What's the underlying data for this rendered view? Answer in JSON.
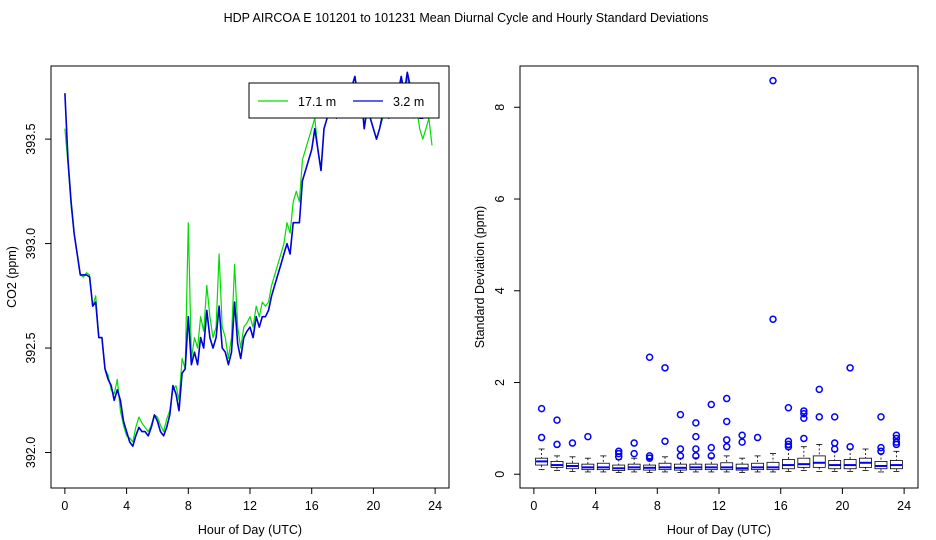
{
  "title": "HDP   AIRCOA E   101201 to 101231   Mean Diurnal Cycle and Hourly Standard Deviations",
  "colors": {
    "series1": "#00dd00",
    "series2": "#0000dd",
    "box": "#0000ff"
  },
  "chart_data": [
    {
      "type": "line",
      "xlabel": "Hour of Day (UTC)",
      "ylabel": "CO2 (ppm)",
      "xlim": [
        -0.9,
        24.9
      ],
      "ylim": [
        391.83,
        393.85
      ],
      "xticks": [
        0,
        4,
        8,
        12,
        16,
        20,
        24
      ],
      "yticks": [
        392.0,
        392.5,
        393.0,
        393.5
      ],
      "xtick_labels": [
        "0",
        "4",
        "8",
        "12",
        "16",
        "20",
        "24"
      ],
      "ytick_labels": [
        "392.0",
        "392.5",
        "393.0",
        "393.5"
      ],
      "legend_position": "top-right",
      "x": [
        0,
        0.2,
        0.4,
        0.6,
        0.8,
        1.0,
        1.2,
        1.4,
        1.6,
        1.8,
        2.0,
        2.2,
        2.4,
        2.6,
        2.8,
        3.0,
        3.2,
        3.4,
        3.6,
        3.8,
        4.0,
        4.2,
        4.4,
        4.6,
        4.8,
        5.0,
        5.2,
        5.4,
        5.6,
        5.8,
        6.0,
        6.2,
        6.4,
        6.6,
        6.8,
        7.0,
        7.2,
        7.4,
        7.6,
        7.8,
        8.0,
        8.2,
        8.4,
        8.6,
        8.8,
        9.0,
        9.2,
        9.4,
        9.6,
        9.8,
        10.0,
        10.2,
        10.4,
        10.6,
        10.8,
        11.0,
        11.2,
        11.4,
        11.6,
        11.8,
        12.0,
        12.2,
        12.4,
        12.6,
        12.8,
        13.0,
        13.2,
        13.4,
        13.6,
        13.8,
        14.0,
        14.2,
        14.4,
        14.6,
        14.8,
        15.0,
        15.2,
        15.4,
        15.6,
        15.8,
        16.0,
        16.2,
        16.4,
        16.6,
        16.8,
        17.0,
        17.2,
        17.4,
        17.6,
        17.8,
        18.0,
        18.2,
        18.4,
        18.6,
        18.8,
        19.0,
        19.2,
        19.4,
        19.6,
        19.8,
        20.0,
        20.2,
        20.4,
        20.6,
        20.8,
        21.0,
        21.2,
        21.4,
        21.6,
        21.8,
        22.0,
        22.2,
        22.4,
        22.6,
        22.8,
        23.0,
        23.2,
        23.4,
        23.6,
        23.8
      ],
      "series": [
        {
          "name": "17.1 m",
          "values": [
            393.55,
            393.38,
            393.18,
            393.05,
            392.95,
            392.85,
            392.84,
            392.86,
            392.85,
            392.7,
            392.75,
            392.55,
            392.55,
            392.4,
            392.37,
            392.3,
            392.28,
            392.35,
            392.2,
            392.13,
            392.08,
            392.07,
            392.05,
            392.12,
            392.17,
            392.14,
            392.12,
            392.1,
            392.13,
            392.18,
            392.17,
            392.13,
            392.1,
            392.16,
            392.2,
            392.3,
            392.32,
            392.25,
            392.45,
            392.4,
            393.1,
            392.45,
            392.55,
            392.5,
            392.65,
            392.58,
            392.8,
            392.65,
            392.55,
            392.6,
            392.95,
            392.6,
            392.55,
            392.45,
            392.55,
            392.9,
            392.6,
            392.5,
            392.6,
            392.62,
            392.65,
            392.6,
            392.7,
            392.65,
            392.72,
            392.7,
            392.72,
            392.8,
            392.85,
            392.9,
            392.95,
            393.0,
            393.1,
            393.05,
            393.2,
            393.25,
            393.2,
            393.4,
            393.45,
            393.5,
            393.55,
            393.6,
            393.45,
            393.35,
            393.55,
            393.6,
            393.75,
            393.62,
            393.6,
            393.7,
            393.72,
            393.7,
            393.68,
            393.75,
            393.8,
            393.7,
            393.72,
            393.55,
            393.65,
            393.6,
            393.55,
            393.5,
            393.55,
            393.6,
            393.65,
            393.6,
            393.7,
            393.75,
            393.72,
            393.78,
            393.7,
            393.8,
            393.72,
            393.6,
            393.65,
            393.55,
            393.5,
            393.55,
            393.6,
            393.47
          ]
        },
        {
          "name": "3.2 m",
          "values": [
            393.72,
            393.4,
            393.2,
            393.05,
            392.95,
            392.85,
            392.85,
            392.85,
            392.84,
            392.7,
            392.72,
            392.55,
            392.55,
            392.4,
            392.35,
            392.32,
            392.25,
            392.3,
            392.25,
            392.15,
            392.1,
            392.05,
            392.03,
            392.08,
            392.12,
            392.1,
            392.1,
            392.08,
            392.12,
            392.18,
            392.15,
            392.1,
            392.08,
            392.12,
            392.18,
            392.32,
            392.28,
            392.2,
            392.38,
            392.4,
            392.65,
            392.42,
            392.48,
            392.42,
            392.55,
            392.5,
            392.68,
            392.55,
            392.5,
            392.55,
            392.7,
            392.5,
            392.48,
            392.42,
            392.48,
            392.72,
            392.52,
            392.45,
            392.55,
            392.58,
            392.6,
            392.55,
            392.65,
            392.6,
            392.65,
            392.65,
            392.68,
            392.75,
            392.8,
            392.85,
            392.9,
            392.95,
            393.0,
            392.95,
            393.1,
            393.1,
            393.1,
            393.3,
            393.35,
            393.4,
            393.45,
            393.55,
            393.45,
            393.35,
            393.55,
            393.6,
            393.7,
            393.62,
            393.6,
            393.72,
            393.7,
            393.7,
            393.68,
            393.75,
            393.8,
            393.7,
            393.72,
            393.55,
            393.65,
            393.6,
            393.55,
            393.5,
            393.55,
            393.62,
            393.65,
            393.6,
            393.72,
            393.75,
            393.72,
            393.8,
            393.72,
            393.82,
            393.75,
            393.65,
            393.65,
            393.6,
            393.6,
            393.62,
            393.65,
            393.62
          ]
        }
      ]
    },
    {
      "type": "box",
      "xlabel": "Hour of Day (UTC)",
      "ylabel": "Standard Deviation (ppm)",
      "xlim": [
        -0.9,
        24.9
      ],
      "ylim": [
        -0.3,
        8.9
      ],
      "xticks": [
        0,
        4,
        8,
        12,
        16,
        20,
        24
      ],
      "yticks": [
        0,
        2,
        4,
        6,
        8
      ],
      "xtick_labels": [
        "0",
        "4",
        "8",
        "12",
        "16",
        "20",
        "24"
      ],
      "ytick_labels": [
        "0",
        "2",
        "4",
        "6",
        "8"
      ],
      "boxes": [
        {
          "x": 0.5,
          "q1": 0.2,
          "median": 0.28,
          "q3": 0.35,
          "whisker_low": 0.1,
          "whisker_high": 0.55,
          "outliers": [
            0.8,
            1.43
          ]
        },
        {
          "x": 1.5,
          "q1": 0.15,
          "median": 0.2,
          "q3": 0.28,
          "whisker_low": 0.08,
          "whisker_high": 0.4,
          "outliers": [
            0.65,
            1.18
          ]
        },
        {
          "x": 2.5,
          "q1": 0.12,
          "median": 0.18,
          "q3": 0.24,
          "whisker_low": 0.06,
          "whisker_high": 0.38,
          "outliers": [
            0.68
          ]
        },
        {
          "x": 3.5,
          "q1": 0.1,
          "median": 0.15,
          "q3": 0.22,
          "whisker_low": 0.05,
          "whisker_high": 0.35,
          "outliers": [
            0.82
          ]
        },
        {
          "x": 4.5,
          "q1": 0.1,
          "median": 0.15,
          "q3": 0.24,
          "whisker_low": 0.05,
          "whisker_high": 0.4,
          "outliers": []
        },
        {
          "x": 5.5,
          "q1": 0.08,
          "median": 0.13,
          "q3": 0.2,
          "whisker_low": 0.04,
          "whisker_high": 0.32,
          "outliers": [
            0.38,
            0.45,
            0.5
          ]
        },
        {
          "x": 6.5,
          "q1": 0.1,
          "median": 0.15,
          "q3": 0.22,
          "whisker_low": 0.05,
          "whisker_high": 0.35,
          "outliers": [
            0.45,
            0.68
          ]
        },
        {
          "x": 7.5,
          "q1": 0.09,
          "median": 0.14,
          "q3": 0.2,
          "whisker_low": 0.04,
          "whisker_high": 0.32,
          "outliers": [
            0.35,
            0.4,
            2.55
          ]
        },
        {
          "x": 8.5,
          "q1": 0.1,
          "median": 0.15,
          "q3": 0.24,
          "whisker_low": 0.05,
          "whisker_high": 0.38,
          "outliers": [
            0.72,
            2.32
          ]
        },
        {
          "x": 9.5,
          "q1": 0.09,
          "median": 0.14,
          "q3": 0.22,
          "whisker_low": 0.04,
          "whisker_high": 0.35,
          "outliers": [
            0.4,
            0.55,
            1.3
          ]
        },
        {
          "x": 10.5,
          "q1": 0.1,
          "median": 0.15,
          "q3": 0.22,
          "whisker_low": 0.05,
          "whisker_high": 0.36,
          "outliers": [
            0.4,
            0.55,
            0.82,
            1.12
          ]
        },
        {
          "x": 11.5,
          "q1": 0.1,
          "median": 0.15,
          "q3": 0.22,
          "whisker_low": 0.05,
          "whisker_high": 0.36,
          "outliers": [
            0.4,
            0.58,
            1.52
          ]
        },
        {
          "x": 12.5,
          "q1": 0.1,
          "median": 0.15,
          "q3": 0.25,
          "whisker_low": 0.05,
          "whisker_high": 0.4,
          "outliers": [
            0.6,
            0.75,
            1.15,
            1.65
          ]
        },
        {
          "x": 13.5,
          "q1": 0.09,
          "median": 0.13,
          "q3": 0.22,
          "whisker_low": 0.04,
          "whisker_high": 0.35,
          "outliers": [
            0.7,
            0.85
          ]
        },
        {
          "x": 14.5,
          "q1": 0.1,
          "median": 0.15,
          "q3": 0.24,
          "whisker_low": 0.05,
          "whisker_high": 0.4,
          "outliers": [
            0.8
          ]
        },
        {
          "x": 15.5,
          "q1": 0.1,
          "median": 0.15,
          "q3": 0.26,
          "whisker_low": 0.05,
          "whisker_high": 0.45,
          "outliers": [
            3.38,
            8.58
          ]
        },
        {
          "x": 16.5,
          "q1": 0.12,
          "median": 0.2,
          "q3": 0.32,
          "whisker_low": 0.06,
          "whisker_high": 0.55,
          "outliers": [
            0.6,
            0.65,
            0.72,
            1.45
          ]
        },
        {
          "x": 17.5,
          "q1": 0.15,
          "median": 0.22,
          "q3": 0.35,
          "whisker_low": 0.08,
          "whisker_high": 0.6,
          "outliers": [
            0.78,
            1.22,
            1.32,
            1.38
          ]
        },
        {
          "x": 18.5,
          "q1": 0.15,
          "median": 0.25,
          "q3": 0.4,
          "whisker_low": 0.06,
          "whisker_high": 0.65,
          "outliers": [
            1.25,
            1.85
          ]
        },
        {
          "x": 19.5,
          "q1": 0.12,
          "median": 0.2,
          "q3": 0.3,
          "whisker_low": 0.06,
          "whisker_high": 0.5,
          "outliers": [
            0.55,
            0.68,
            1.25
          ]
        },
        {
          "x": 20.5,
          "q1": 0.12,
          "median": 0.2,
          "q3": 0.32,
          "whisker_low": 0.06,
          "whisker_high": 0.55,
          "outliers": [
            0.6,
            2.32
          ]
        },
        {
          "x": 21.5,
          "q1": 0.15,
          "median": 0.25,
          "q3": 0.35,
          "whisker_low": 0.08,
          "whisker_high": 0.55,
          "outliers": []
        },
        {
          "x": 22.5,
          "q1": 0.12,
          "median": 0.18,
          "q3": 0.28,
          "whisker_low": 0.05,
          "whisker_high": 0.45,
          "outliers": [
            0.5,
            0.58,
            1.25
          ]
        },
        {
          "x": 23.5,
          "q1": 0.12,
          "median": 0.2,
          "q3": 0.3,
          "whisker_low": 0.06,
          "whisker_high": 0.5,
          "outliers": [
            0.65,
            0.7,
            0.78,
            0.85
          ]
        }
      ]
    }
  ]
}
